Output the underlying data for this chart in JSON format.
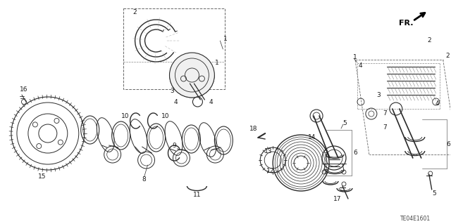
{
  "bg_color": "#ffffff",
  "diagram_code": "TE04E1601",
  "fr_label": "FR.",
  "lc": "#2a2a2a",
  "tc": "#1a1a1a"
}
